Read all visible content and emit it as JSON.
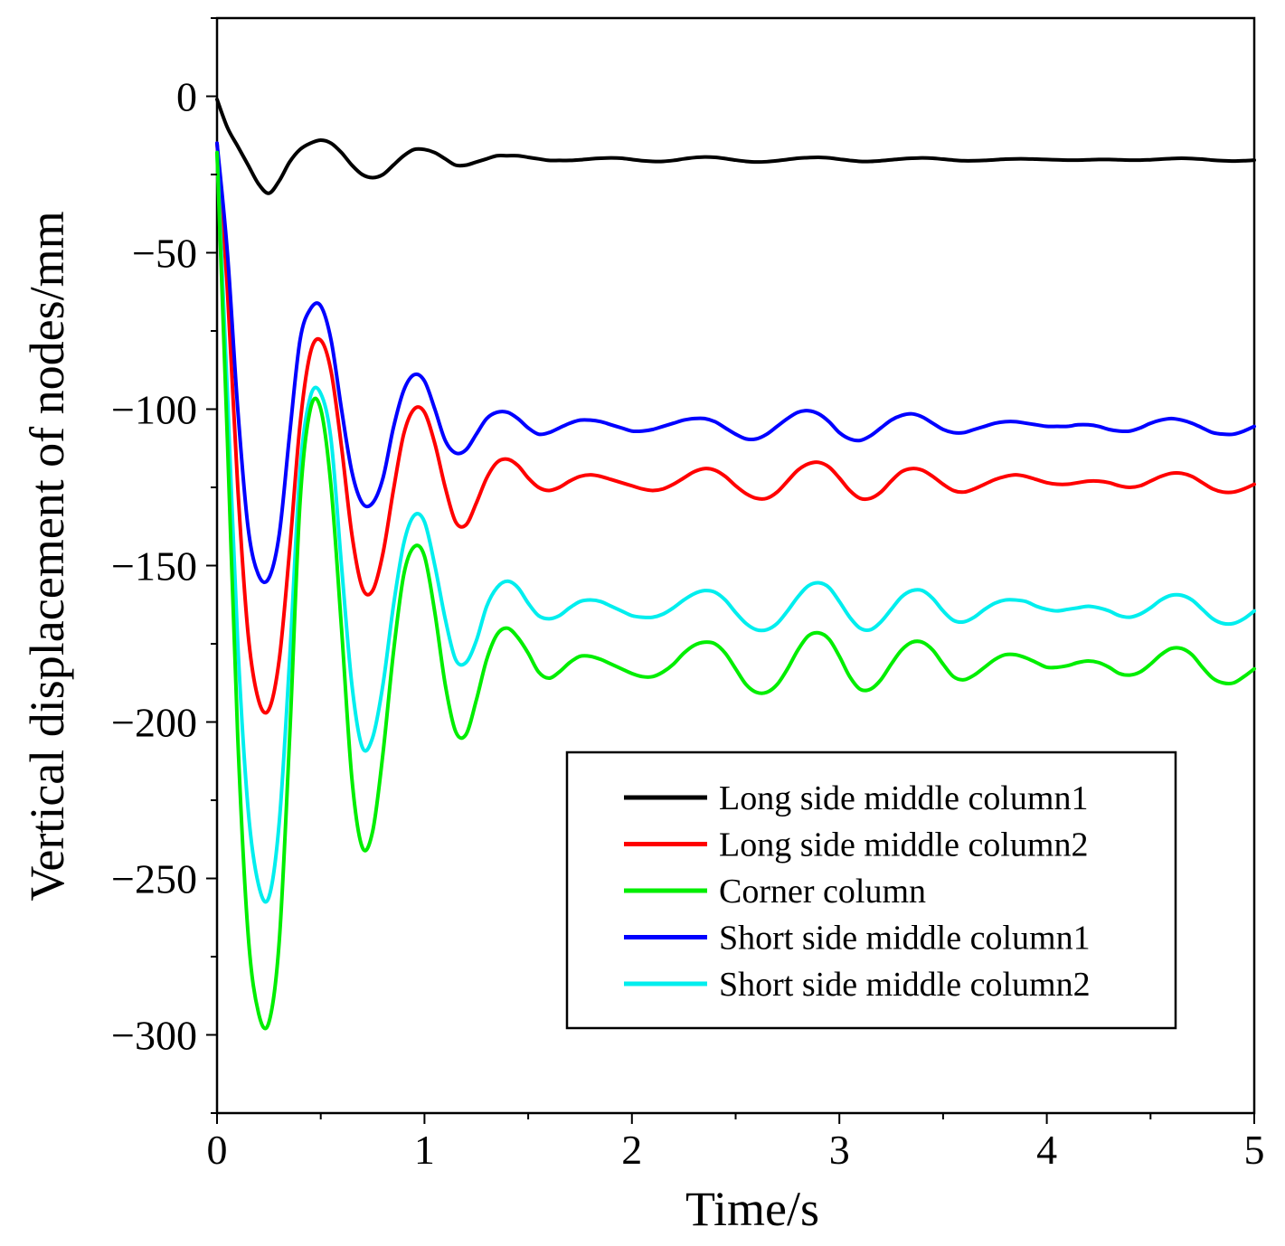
{
  "chart_data": {
    "type": "line",
    "title": "",
    "xlabel": "Time/s",
    "ylabel": "Vertical displacement of nodes/mm",
    "xlim": [
      0,
      5
    ],
    "ylim": [
      -325,
      25
    ],
    "xticks": [
      0,
      1,
      2,
      3,
      4,
      5
    ],
    "xtick_labels": [
      "0",
      "1",
      "2",
      "3",
      "4",
      "5"
    ],
    "yticks": [
      0,
      -50,
      -100,
      -150,
      -200,
      -250,
      -300
    ],
    "ytick_labels": [
      "0",
      "−50",
      "−100",
      "−150",
      "−200",
      "−250",
      "−300"
    ],
    "grid": false,
    "legend_position": "lower-right",
    "x": [
      0,
      0.05,
      0.1,
      0.15,
      0.2,
      0.25,
      0.3,
      0.35,
      0.4,
      0.45,
      0.5,
      0.55,
      0.6,
      0.65,
      0.7,
      0.75,
      0.8,
      0.85,
      0.9,
      0.95,
      1.0,
      1.05,
      1.1,
      1.15,
      1.2,
      1.25,
      1.3,
      1.35,
      1.4,
      1.45,
      1.5,
      1.55,
      1.6,
      1.65,
      1.7,
      1.75,
      1.8,
      1.85,
      1.9,
      1.95,
      2.0,
      2.05,
      2.1,
      2.15,
      2.2,
      2.25,
      2.3,
      2.35,
      2.4,
      2.45,
      2.5,
      2.55,
      2.6,
      2.65,
      2.7,
      2.75,
      2.8,
      2.85,
      2.9,
      2.95,
      3.0,
      3.05,
      3.1,
      3.15,
      3.2,
      3.25,
      3.3,
      3.35,
      3.4,
      3.45,
      3.5,
      3.55,
      3.6,
      3.65,
      3.7,
      3.75,
      3.8,
      3.85,
      3.9,
      3.95,
      4.0,
      4.05,
      4.1,
      4.15,
      4.2,
      4.25,
      4.3,
      4.35,
      4.4,
      4.45,
      4.5,
      4.55,
      4.6,
      4.65,
      4.7,
      4.75,
      4.8,
      4.85,
      4.9,
      4.95,
      5.0
    ],
    "series": [
      {
        "name": "Long side middle column1",
        "color": "#000000",
        "values": [
          -1,
          -10,
          -16,
          -22,
          -28,
          -31,
          -27,
          -21,
          -17,
          -15,
          -14,
          -15,
          -18,
          -22,
          -25,
          -26,
          -25,
          -22,
          -19,
          -17,
          -17,
          -18,
          -20,
          -22,
          -22,
          -21,
          -20,
          -19,
          -19,
          -19,
          -19.5,
          -20,
          -20.5,
          -20.5,
          -20.5,
          -20.3,
          -20,
          -19.8,
          -19.7,
          -19.8,
          -20.2,
          -20.6,
          -20.8,
          -20.8,
          -20.5,
          -20,
          -19.6,
          -19.4,
          -19.5,
          -19.9,
          -20.4,
          -20.8,
          -21,
          -20.9,
          -20.6,
          -20.2,
          -19.8,
          -19.6,
          -19.5,
          -19.7,
          -20.1,
          -20.5,
          -20.8,
          -20.8,
          -20.6,
          -20.3,
          -20,
          -19.8,
          -19.7,
          -19.8,
          -20.1,
          -20.4,
          -20.6,
          -20.6,
          -20.5,
          -20.3,
          -20.1,
          -20,
          -20,
          -20.1,
          -20.2,
          -20.3,
          -20.4,
          -20.4,
          -20.3,
          -20.2,
          -20.2,
          -20.3,
          -20.4,
          -20.4,
          -20.3,
          -20.1,
          -19.9,
          -19.8,
          -19.9,
          -20.1,
          -20.4,
          -20.6,
          -20.7,
          -20.6,
          -20.4
        ]
      },
      {
        "name": "Long side middle column2",
        "color": "#ff0000",
        "values": [
          -15,
          -62,
          -125,
          -172,
          -193,
          -196,
          -180,
          -145,
          -105,
          -82,
          -78,
          -88,
          -112,
          -140,
          -157,
          -158,
          -146,
          -126,
          -108,
          -100,
          -101,
          -111,
          -125,
          -136,
          -137,
          -130,
          -122,
          -117,
          -116,
          -118,
          -122,
          -125,
          -126,
          -125,
          -123,
          -121.5,
          -121,
          -121.5,
          -122.5,
          -123.5,
          -124.5,
          -125.5,
          -126,
          -125.5,
          -124,
          -122,
          -120,
          -119,
          -119.5,
          -121.5,
          -124.5,
          -127,
          -128.5,
          -128.5,
          -126.5,
          -123,
          -119.5,
          -117.5,
          -117,
          -118.5,
          -122,
          -126,
          -128.5,
          -128.5,
          -126.5,
          -123,
          -120,
          -119,
          -119.5,
          -121.5,
          -124,
          -126,
          -126.5,
          -125.5,
          -124,
          -122.5,
          -121.5,
          -121,
          -121.5,
          -122.5,
          -123.5,
          -124,
          -124,
          -123.5,
          -123,
          -123,
          -123.5,
          -124.5,
          -125,
          -124.5,
          -123,
          -121.5,
          -120.5,
          -120.5,
          -121.5,
          -123.5,
          -125.5,
          -126.5,
          -126.5,
          -125.5,
          -124
        ]
      },
      {
        "name": "Corner column",
        "color": "#00ee00",
        "values": [
          -18,
          -110,
          -205,
          -268,
          -293,
          -296,
          -270,
          -205,
          -130,
          -100,
          -100,
          -125,
          -170,
          -218,
          -240,
          -235,
          -210,
          -178,
          -153,
          -144,
          -147,
          -165,
          -188,
          -203,
          -204,
          -193,
          -180,
          -172,
          -170,
          -173,
          -178,
          -184,
          -186,
          -184,
          -181,
          -179,
          -179,
          -180,
          -181.5,
          -183,
          -184.5,
          -185.5,
          -185.5,
          -184,
          -181.5,
          -178,
          -175.5,
          -174.5,
          -175,
          -178,
          -183,
          -188,
          -190.5,
          -190.5,
          -188,
          -183,
          -177,
          -172.5,
          -171.5,
          -173.5,
          -179,
          -185.5,
          -189.5,
          -189.5,
          -186.5,
          -181.5,
          -177,
          -174.5,
          -174.5,
          -177,
          -181.5,
          -185.5,
          -186.5,
          -185,
          -182.5,
          -180,
          -178.5,
          -178.5,
          -179.5,
          -181,
          -182.5,
          -182.5,
          -182,
          -181,
          -180.5,
          -181,
          -182.5,
          -184.5,
          -185,
          -184,
          -181.5,
          -178.5,
          -176.5,
          -176.5,
          -178.5,
          -182.5,
          -186,
          -187.5,
          -187.5,
          -185.5,
          -183
        ]
      },
      {
        "name": "Short side middle column1",
        "color": "#0000ff",
        "values": [
          -15,
          -50,
          -100,
          -138,
          -153,
          -154,
          -140,
          -108,
          -78,
          -68,
          -67,
          -78,
          -100,
          -120,
          -130,
          -130,
          -122,
          -106,
          -94,
          -89,
          -91,
          -100,
          -110,
          -114,
          -113,
          -108,
          -103,
          -101,
          -101,
          -103,
          -106,
          -108,
          -107.5,
          -106,
          -104.5,
          -103.5,
          -103.5,
          -104,
          -105,
          -106,
          -107,
          -107,
          -106.5,
          -105.5,
          -104.5,
          -103.5,
          -103,
          -103,
          -104,
          -106,
          -108,
          -109.5,
          -109.5,
          -108,
          -105.5,
          -103,
          -101,
          -100.5,
          -101.5,
          -104,
          -107.5,
          -109.5,
          -110,
          -108.5,
          -106,
          -103.5,
          -102,
          -101.5,
          -102.5,
          -104.5,
          -106.5,
          -107.5,
          -107.5,
          -106.5,
          -105.5,
          -104.5,
          -104,
          -104,
          -104.5,
          -105,
          -105.5,
          -105.5,
          -105.5,
          -105,
          -105,
          -105.5,
          -106.5,
          -107,
          -107,
          -106,
          -104.5,
          -103.5,
          -103,
          -103.5,
          -104.5,
          -106,
          -107.5,
          -108,
          -108,
          -107,
          -105.5
        ]
      },
      {
        "name": "Short side middle column2",
        "color": "#00eeee",
        "values": [
          -18,
          -95,
          -175,
          -228,
          -252,
          -256,
          -232,
          -180,
          -120,
          -96,
          -95,
          -110,
          -150,
          -188,
          -208,
          -205,
          -188,
          -163,
          -143,
          -134,
          -136,
          -150,
          -167,
          -180,
          -181,
          -174,
          -163,
          -157,
          -155,
          -157,
          -162,
          -166,
          -167,
          -166,
          -163.5,
          -161.5,
          -161,
          -161.5,
          -163,
          -164.5,
          -166,
          -166.5,
          -166.5,
          -165.5,
          -163.5,
          -161,
          -159,
          -158,
          -158.5,
          -161,
          -165,
          -168.5,
          -170.5,
          -170.5,
          -168.5,
          -164.5,
          -160,
          -156.5,
          -155.5,
          -157,
          -161.5,
          -166.5,
          -170,
          -170.5,
          -168,
          -164,
          -160,
          -158,
          -158,
          -160.5,
          -164.5,
          -167.5,
          -168,
          -166.5,
          -164,
          -162,
          -161,
          -161,
          -161.5,
          -163,
          -164,
          -164.5,
          -164,
          -163.5,
          -163,
          -163.5,
          -164.5,
          -166,
          -166.5,
          -165.5,
          -163.5,
          -161,
          -159.5,
          -159.5,
          -161,
          -164,
          -167,
          -168.5,
          -168.5,
          -167,
          -164.5
        ]
      }
    ]
  }
}
